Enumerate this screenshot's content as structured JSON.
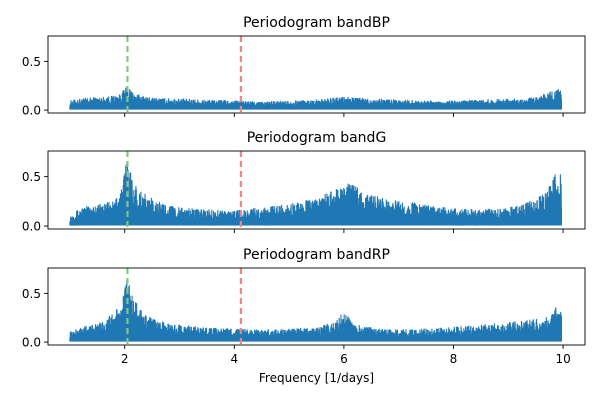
{
  "chart_data": [
    {
      "type": "line",
      "title": "Periodogram bandBP",
      "xlabel": "",
      "ylabel": "",
      "xlim": [
        0.6,
        10.4
      ],
      "ylim": [
        -0.03,
        0.76
      ],
      "xticks": [
        2,
        4,
        6,
        8,
        10
      ],
      "xtick_labels": [],
      "yticks": [
        0.0,
        0.5
      ],
      "ytick_labels": [
        "0.0",
        "0.5"
      ],
      "vlines": [
        {
          "x": 2.05,
          "color": "#7fc97f"
        },
        {
          "x": 4.12,
          "color": "#f4827e"
        }
      ],
      "series": [
        {
          "color": "#1f77b4",
          "x": [
            1.0,
            1.3,
            1.6,
            1.9,
            2.05,
            2.2,
            2.5,
            3.0,
            3.5,
            4.0,
            4.5,
            5.0,
            5.5,
            6.0,
            6.5,
            7.0,
            7.5,
            8.0,
            8.5,
            9.0,
            9.5,
            9.9,
            9.97
          ],
          "y": [
            0.09,
            0.12,
            0.13,
            0.15,
            0.24,
            0.16,
            0.12,
            0.11,
            0.1,
            0.09,
            0.08,
            0.09,
            0.1,
            0.13,
            0.11,
            0.1,
            0.09,
            0.09,
            0.1,
            0.11,
            0.12,
            0.22,
            0.2
          ]
        }
      ]
    },
    {
      "type": "line",
      "title": "Periodogram bandG",
      "xlabel": "",
      "ylabel": "",
      "xlim": [
        0.6,
        10.4
      ],
      "ylim": [
        -0.03,
        0.76
      ],
      "xticks": [
        2,
        4,
        6,
        8,
        10
      ],
      "xtick_labels": [],
      "yticks": [
        0.0,
        0.5
      ],
      "ytick_labels": [
        "0.0",
        "0.5"
      ],
      "vlines": [
        {
          "x": 2.05,
          "color": "#7fc97f"
        },
        {
          "x": 4.12,
          "color": "#f4827e"
        }
      ],
      "series": [
        {
          "color": "#1f77b4",
          "x": [
            1.0,
            1.2,
            1.5,
            1.8,
            1.95,
            2.05,
            2.15,
            2.4,
            2.7,
            3.0,
            3.5,
            4.0,
            4.5,
            5.0,
            5.5,
            5.8,
            6.1,
            6.4,
            6.8,
            7.2,
            7.6,
            8.0,
            8.5,
            9.0,
            9.3,
            9.6,
            9.8,
            9.93,
            9.97
          ],
          "y": [
            0.1,
            0.18,
            0.22,
            0.24,
            0.4,
            0.75,
            0.45,
            0.3,
            0.22,
            0.18,
            0.16,
            0.15,
            0.18,
            0.22,
            0.28,
            0.35,
            0.43,
            0.33,
            0.26,
            0.24,
            0.2,
            0.17,
            0.16,
            0.18,
            0.22,
            0.3,
            0.44,
            0.62,
            0.5
          ]
        }
      ]
    },
    {
      "type": "line",
      "title": "Periodogram bandRP",
      "xlabel": "Frequency [1/days]",
      "ylabel": "",
      "xlim": [
        0.6,
        10.4
      ],
      "ylim": [
        -0.03,
        0.76
      ],
      "xticks": [
        2,
        4,
        6,
        8,
        10
      ],
      "xtick_labels": [
        "2",
        "4",
        "6",
        "8",
        "10"
      ],
      "yticks": [
        0.0,
        0.5
      ],
      "ytick_labels": [
        "0.0",
        "0.5"
      ],
      "vlines": [
        {
          "x": 2.05,
          "color": "#7fc97f"
        },
        {
          "x": 4.12,
          "color": "#f4827e"
        }
      ],
      "series": [
        {
          "color": "#1f77b4",
          "x": [
            1.0,
            1.3,
            1.6,
            1.8,
            1.95,
            2.05,
            2.15,
            2.4,
            2.8,
            3.2,
            3.6,
            4.0,
            4.5,
            5.0,
            5.5,
            5.8,
            6.0,
            6.2,
            6.6,
            7.0,
            7.5,
            8.0,
            8.5,
            9.0,
            9.4,
            9.7,
            9.88,
            9.97
          ],
          "y": [
            0.1,
            0.16,
            0.2,
            0.3,
            0.4,
            0.68,
            0.45,
            0.26,
            0.18,
            0.16,
            0.14,
            0.13,
            0.12,
            0.13,
            0.14,
            0.2,
            0.3,
            0.18,
            0.13,
            0.12,
            0.13,
            0.15,
            0.17,
            0.2,
            0.22,
            0.25,
            0.36,
            0.3
          ]
        }
      ]
    }
  ]
}
